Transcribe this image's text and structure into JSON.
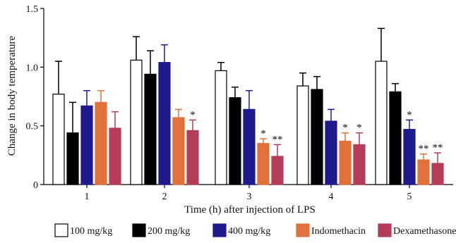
{
  "chart_data": {
    "type": "bar",
    "xlabel": "Time (h) after injection of LPS",
    "ylabel": "Change in body temperature",
    "categories": [
      "1",
      "2",
      "3",
      "4",
      "5"
    ],
    "ylim": [
      0,
      1.5
    ],
    "yticks": [
      "0",
      "0.5",
      "1.0",
      "1.5"
    ],
    "error_bars": true,
    "legend_position": "bottom",
    "series": [
      {
        "name": "100 mg/kg",
        "color": "#ffffff",
        "values": [
          0.77,
          1.06,
          0.97,
          0.84,
          1.05
        ],
        "errors": [
          0.28,
          0.2,
          0.07,
          0.11,
          0.28
        ],
        "sig": [
          "",
          "",
          "",
          "",
          ""
        ]
      },
      {
        "name": "200 mg/kg",
        "color": "#000000",
        "values": [
          0.44,
          0.94,
          0.74,
          0.81,
          0.79
        ],
        "errors": [
          0.26,
          0.2,
          0.09,
          0.11,
          0.07
        ],
        "sig": [
          "",
          "",
          "",
          "",
          ""
        ]
      },
      {
        "name": "400 mg/kg",
        "color": "#1f1a8c",
        "values": [
          0.67,
          1.04,
          0.64,
          0.54,
          0.47
        ],
        "errors": [
          0.13,
          0.15,
          0.16,
          0.1,
          0.08
        ],
        "sig": [
          "",
          "",
          "",
          "",
          "*"
        ]
      },
      {
        "name": "Indomethacin",
        "color": "#e0713b",
        "values": [
          0.7,
          0.57,
          0.35,
          0.37,
          0.21
        ],
        "errors": [
          0.1,
          0.07,
          0.04,
          0.07,
          0.05
        ],
        "sig": [
          "",
          "",
          "*",
          "*",
          "**"
        ]
      },
      {
        "name": "Dexamethasone",
        "color": "#b53d58",
        "values": [
          0.48,
          0.46,
          0.24,
          0.34,
          0.18
        ],
        "errors": [
          0.14,
          0.09,
          0.1,
          0.1,
          0.09
        ],
        "sig": [
          "",
          "*",
          "**",
          "*",
          "**"
        ]
      }
    ]
  }
}
